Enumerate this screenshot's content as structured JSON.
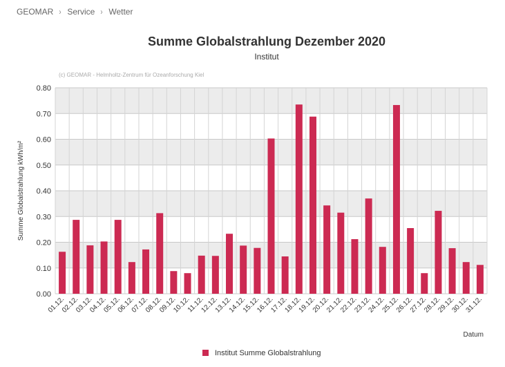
{
  "breadcrumb": {
    "items": [
      "GEOMAR",
      "Service",
      "Wetter"
    ],
    "separator": "›"
  },
  "chart_data": {
    "type": "bar",
    "title": "Summe Globalstrahlung Dezember 2020",
    "subtitle": "Institut",
    "credit": "(c) GEOMAR - Helmholtz-Zentrum für Ozeanforschung Kiel",
    "xlabel": "Datum",
    "ylabel": "Summe Globalstrahlung kWh/m²",
    "ylim": [
      0,
      0.8
    ],
    "yticks": [
      "0.00",
      "0.10",
      "0.20",
      "0.30",
      "0.40",
      "0.50",
      "0.60",
      "0.70",
      "0.80"
    ],
    "categories": [
      "01.12.",
      "02.12.",
      "03.12.",
      "04.12.",
      "05.12.",
      "06.12.",
      "07.12.",
      "08.12.",
      "09.12.",
      "10.12.",
      "11.12.",
      "12.12.",
      "13.12.",
      "14.12.",
      "15.12.",
      "16.12.",
      "17.12.",
      "18.12.",
      "19.12.",
      "20.12.",
      "21.12.",
      "22.12.",
      "23.12.",
      "24.12.",
      "25.12.",
      "26.12.",
      "27.12.",
      "28.12.",
      "29.12.",
      "30.12.",
      "31.12."
    ],
    "series": [
      {
        "name": "Institut Summe Globalstrahlung",
        "color": "#cc2a52",
        "values": [
          0.163,
          0.287,
          0.188,
          0.203,
          0.287,
          0.123,
          0.172,
          0.313,
          0.088,
          0.08,
          0.148,
          0.147,
          0.233,
          0.187,
          0.178,
          0.603,
          0.145,
          0.735,
          0.688,
          0.343,
          0.315,
          0.212,
          0.37,
          0.182,
          0.733,
          0.255,
          0.08,
          0.322,
          0.177,
          0.123,
          0.112
        ]
      }
    ],
    "grid": true,
    "band_color": "#ececec",
    "legend_position": "bottom-center"
  }
}
